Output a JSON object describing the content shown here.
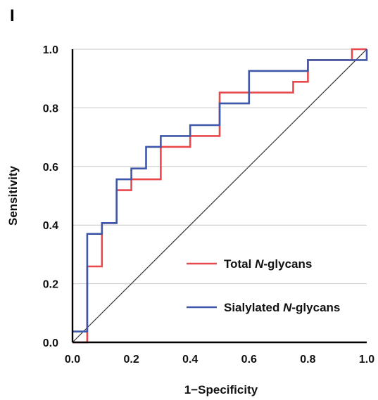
{
  "panel_label": "I",
  "chart_data": {
    "type": "line",
    "xlabel": "1−Specificity",
    "ylabel": "Sensitivity",
    "xlim": [
      0,
      1
    ],
    "ylim": [
      0,
      1
    ],
    "x_ticks": [
      "0.0",
      "0.2",
      "0.4",
      "0.6",
      "0.8",
      "1.0"
    ],
    "y_ticks": [
      "0.0",
      "0.2",
      "0.4",
      "0.6",
      "0.8",
      "1.0"
    ],
    "grid": "horizontal",
    "legend_position": "bottom-right",
    "reference_line": {
      "x": [
        0,
        1
      ],
      "y": [
        0,
        1
      ],
      "color": "#333333"
    },
    "series": [
      {
        "name_prefix": "Total ",
        "name_italic": "N",
        "name_suffix": "-glycans",
        "color": "#e8484c",
        "x": [
          0,
          0.05,
          0.05,
          0.05,
          0.1,
          0.1,
          0.15,
          0.15,
          0.2,
          0.2,
          0.3,
          0.3,
          0.4,
          0.4,
          0.5,
          0.5,
          0.75,
          0.75,
          0.8,
          0.8,
          0.95,
          0.95,
          1.0
        ],
        "y": [
          0,
          0,
          0.259,
          0.259,
          0.259,
          0.407,
          0.407,
          0.519,
          0.519,
          0.556,
          0.556,
          0.667,
          0.667,
          0.704,
          0.704,
          0.852,
          0.852,
          0.889,
          0.889,
          0.963,
          0.963,
          1.0,
          1.0
        ]
      },
      {
        "name_prefix": "Sialylated ",
        "name_italic": "N",
        "name_suffix": "-glycans",
        "color": "#3f57a8",
        "x": [
          0,
          0.05,
          0.05,
          0.1,
          0.1,
          0.15,
          0.15,
          0.2,
          0.2,
          0.25,
          0.25,
          0.3,
          0.3,
          0.4,
          0.4,
          0.5,
          0.5,
          0.6,
          0.6,
          0.8,
          0.8,
          1.0,
          1.0
        ],
        "y": [
          0.037,
          0.037,
          0.37,
          0.37,
          0.407,
          0.407,
          0.556,
          0.556,
          0.593,
          0.593,
          0.667,
          0.667,
          0.704,
          0.704,
          0.741,
          0.741,
          0.815,
          0.815,
          0.926,
          0.926,
          0.963,
          0.963,
          1.0
        ]
      }
    ]
  }
}
